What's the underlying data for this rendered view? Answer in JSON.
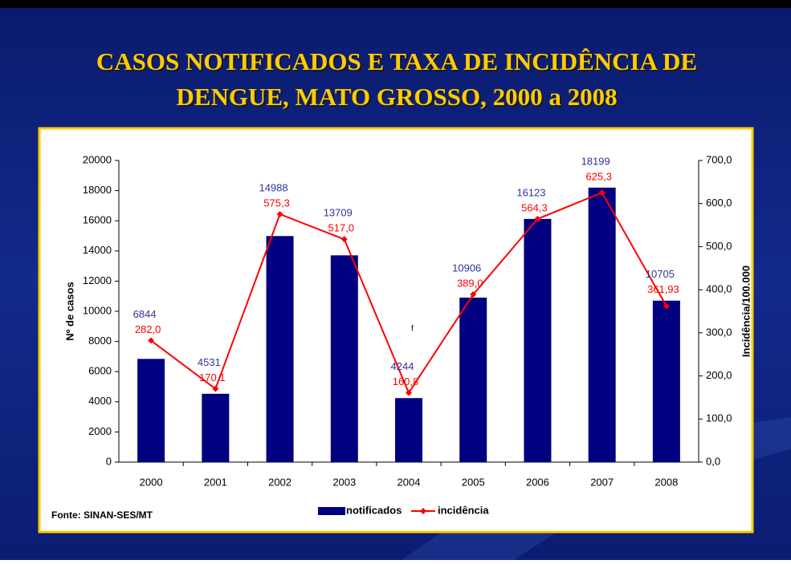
{
  "chart_data": {
    "type": "bar-line",
    "title": "CASOS NOTIFICADOS E TAXA DE INCIDÊNCIA DE",
    "subtitle": "DENGUE, MATO GROSSO, 2000 a 2008",
    "y_label": "Nº de casos",
    "y2_label": "Incidência/100.000",
    "source": "Fonte: SINAN-SES/MT",
    "annotation": "f",
    "categories": [
      "2000",
      "2001",
      "2002",
      "2003",
      "2004",
      "2005",
      "2006",
      "2007",
      "2008"
    ],
    "series": [
      {
        "name": "notificados",
        "type": "bar",
        "color": "#000080",
        "label_color": "#33339a",
        "values": [
          6844,
          4531,
          14988,
          13709,
          4244,
          10906,
          16123,
          18199,
          10705
        ]
      },
      {
        "name": "incidência",
        "type": "line",
        "axis": "y2",
        "color": "#ff0000",
        "values": [
          282.0,
          170.1,
          575.3,
          517.0,
          160.8,
          389.0,
          564.3,
          625.3,
          361.93
        ],
        "value_labels": [
          "282,0",
          "170,1",
          "575,3",
          "517,0",
          "160,8",
          "389,0",
          "564,3",
          "625,3",
          "361,93"
        ]
      }
    ],
    "ylim": [
      0,
      20000
    ],
    "yticks": [
      0,
      2000,
      4000,
      6000,
      8000,
      10000,
      12000,
      14000,
      16000,
      18000,
      20000
    ],
    "y2lim": [
      0,
      700
    ],
    "y2ticks": [
      {
        "value": 0,
        "label": "0,0"
      },
      {
        "value": 100,
        "label": "100,0"
      },
      {
        "value": 200,
        "label": "200,0"
      },
      {
        "value": 300,
        "label": "300,0"
      },
      {
        "value": 400,
        "label": "400,0"
      },
      {
        "value": 500,
        "label": "500,0"
      },
      {
        "value": 600,
        "label": "600,0"
      },
      {
        "value": 700,
        "label": "700,0"
      }
    ],
    "legend": "bottom"
  }
}
